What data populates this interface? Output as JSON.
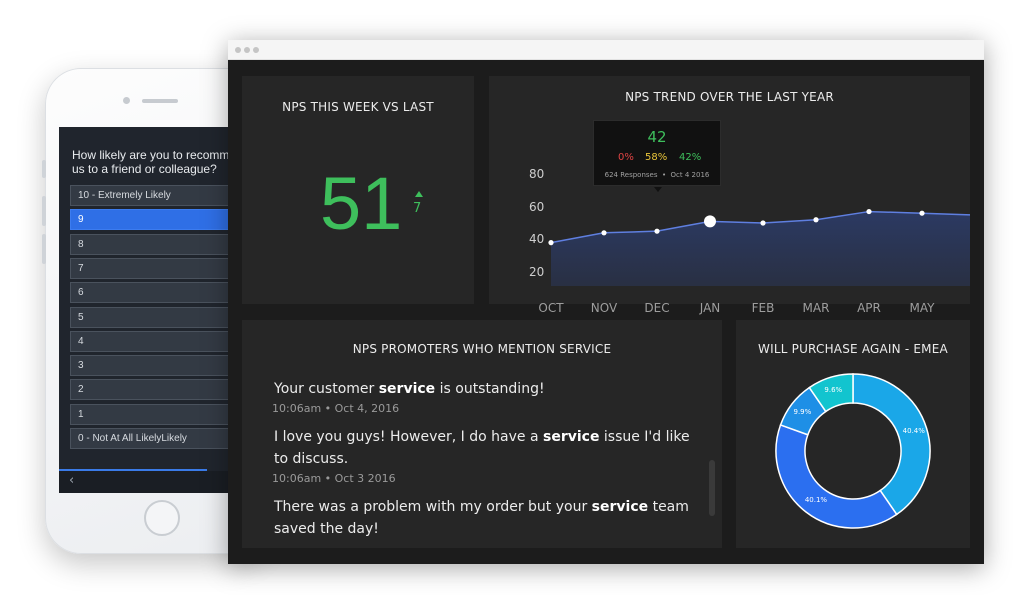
{
  "phone": {
    "question": "How likely are you to recomm\nus to a friend or colleague?",
    "options": [
      {
        "label": "10 - Extremely Likely"
      },
      {
        "label": "9",
        "selected": true
      },
      {
        "label": "8"
      },
      {
        "label": "7"
      },
      {
        "label": "6"
      },
      {
        "label": "5"
      },
      {
        "label": "4"
      },
      {
        "label": "3"
      },
      {
        "label": "2"
      },
      {
        "label": "1"
      },
      {
        "label": "0 - Not At All LikelyLikely"
      }
    ],
    "back_icon": "chevron-left-icon"
  },
  "dashboard": {
    "nps_week": {
      "title": "NPS THIS WEEK VS LAST",
      "value": "51",
      "delta": "7",
      "delta_direction": "up",
      "color": "#3ebf5c"
    },
    "nps_trend": {
      "title": "NPS TREND OVER THE LAST YEAR",
      "tooltip": {
        "value": "42",
        "detractors": "0%",
        "passives": "58%",
        "promoters": "42%",
        "responses": "624 Responses",
        "date": "Oct 4 2016"
      }
    },
    "mentions": {
      "title": "NPS PROMOTERS WHO MENTION SERVICE",
      "keyword": "service",
      "items": [
        {
          "before": "Your customer ",
          "after": " is outstanding!",
          "time": "10:06am • Oct 4, 2016"
        },
        {
          "before": "I love you guys! However, I do have a ",
          "after": " issue I'd like to discuss.",
          "time": "10:06am • Oct 3 2016"
        },
        {
          "before": "There was a problem with my order but  your ",
          "after": " team saved the day!",
          "time": ""
        }
      ]
    },
    "purchase": {
      "title": "WILL PURCHASE AGAIN - EMEA"
    }
  },
  "chart_data": [
    {
      "type": "area",
      "title": "NPS TREND OVER THE LAST YEAR",
      "categories": [
        "OCT",
        "NOV",
        "DEC",
        "JAN",
        "FEB",
        "MAR",
        "APR",
        "MAY"
      ],
      "y_ticks": [
        20,
        40,
        60,
        80
      ],
      "ylim": [
        20,
        80
      ],
      "values": [
        38,
        44,
        45,
        51,
        50,
        52,
        57,
        56
      ],
      "end_value": 55,
      "line_color": "#5f7fe0",
      "fill_color": "#2c3b66",
      "highlight_index": 3
    },
    {
      "type": "pie",
      "title": "WILL PURCHASE AGAIN - EMEA",
      "slices": [
        {
          "label": "40.4%",
          "value": 40.4,
          "color": "#1aa7e8"
        },
        {
          "label": "40.1%",
          "value": 40.1,
          "color": "#2b6ff0"
        },
        {
          "label": "9.9%",
          "value": 9.9,
          "color": "#1e8fe6"
        },
        {
          "label": "9.6%",
          "value": 9.6,
          "color": "#12c4cf"
        }
      ]
    }
  ]
}
